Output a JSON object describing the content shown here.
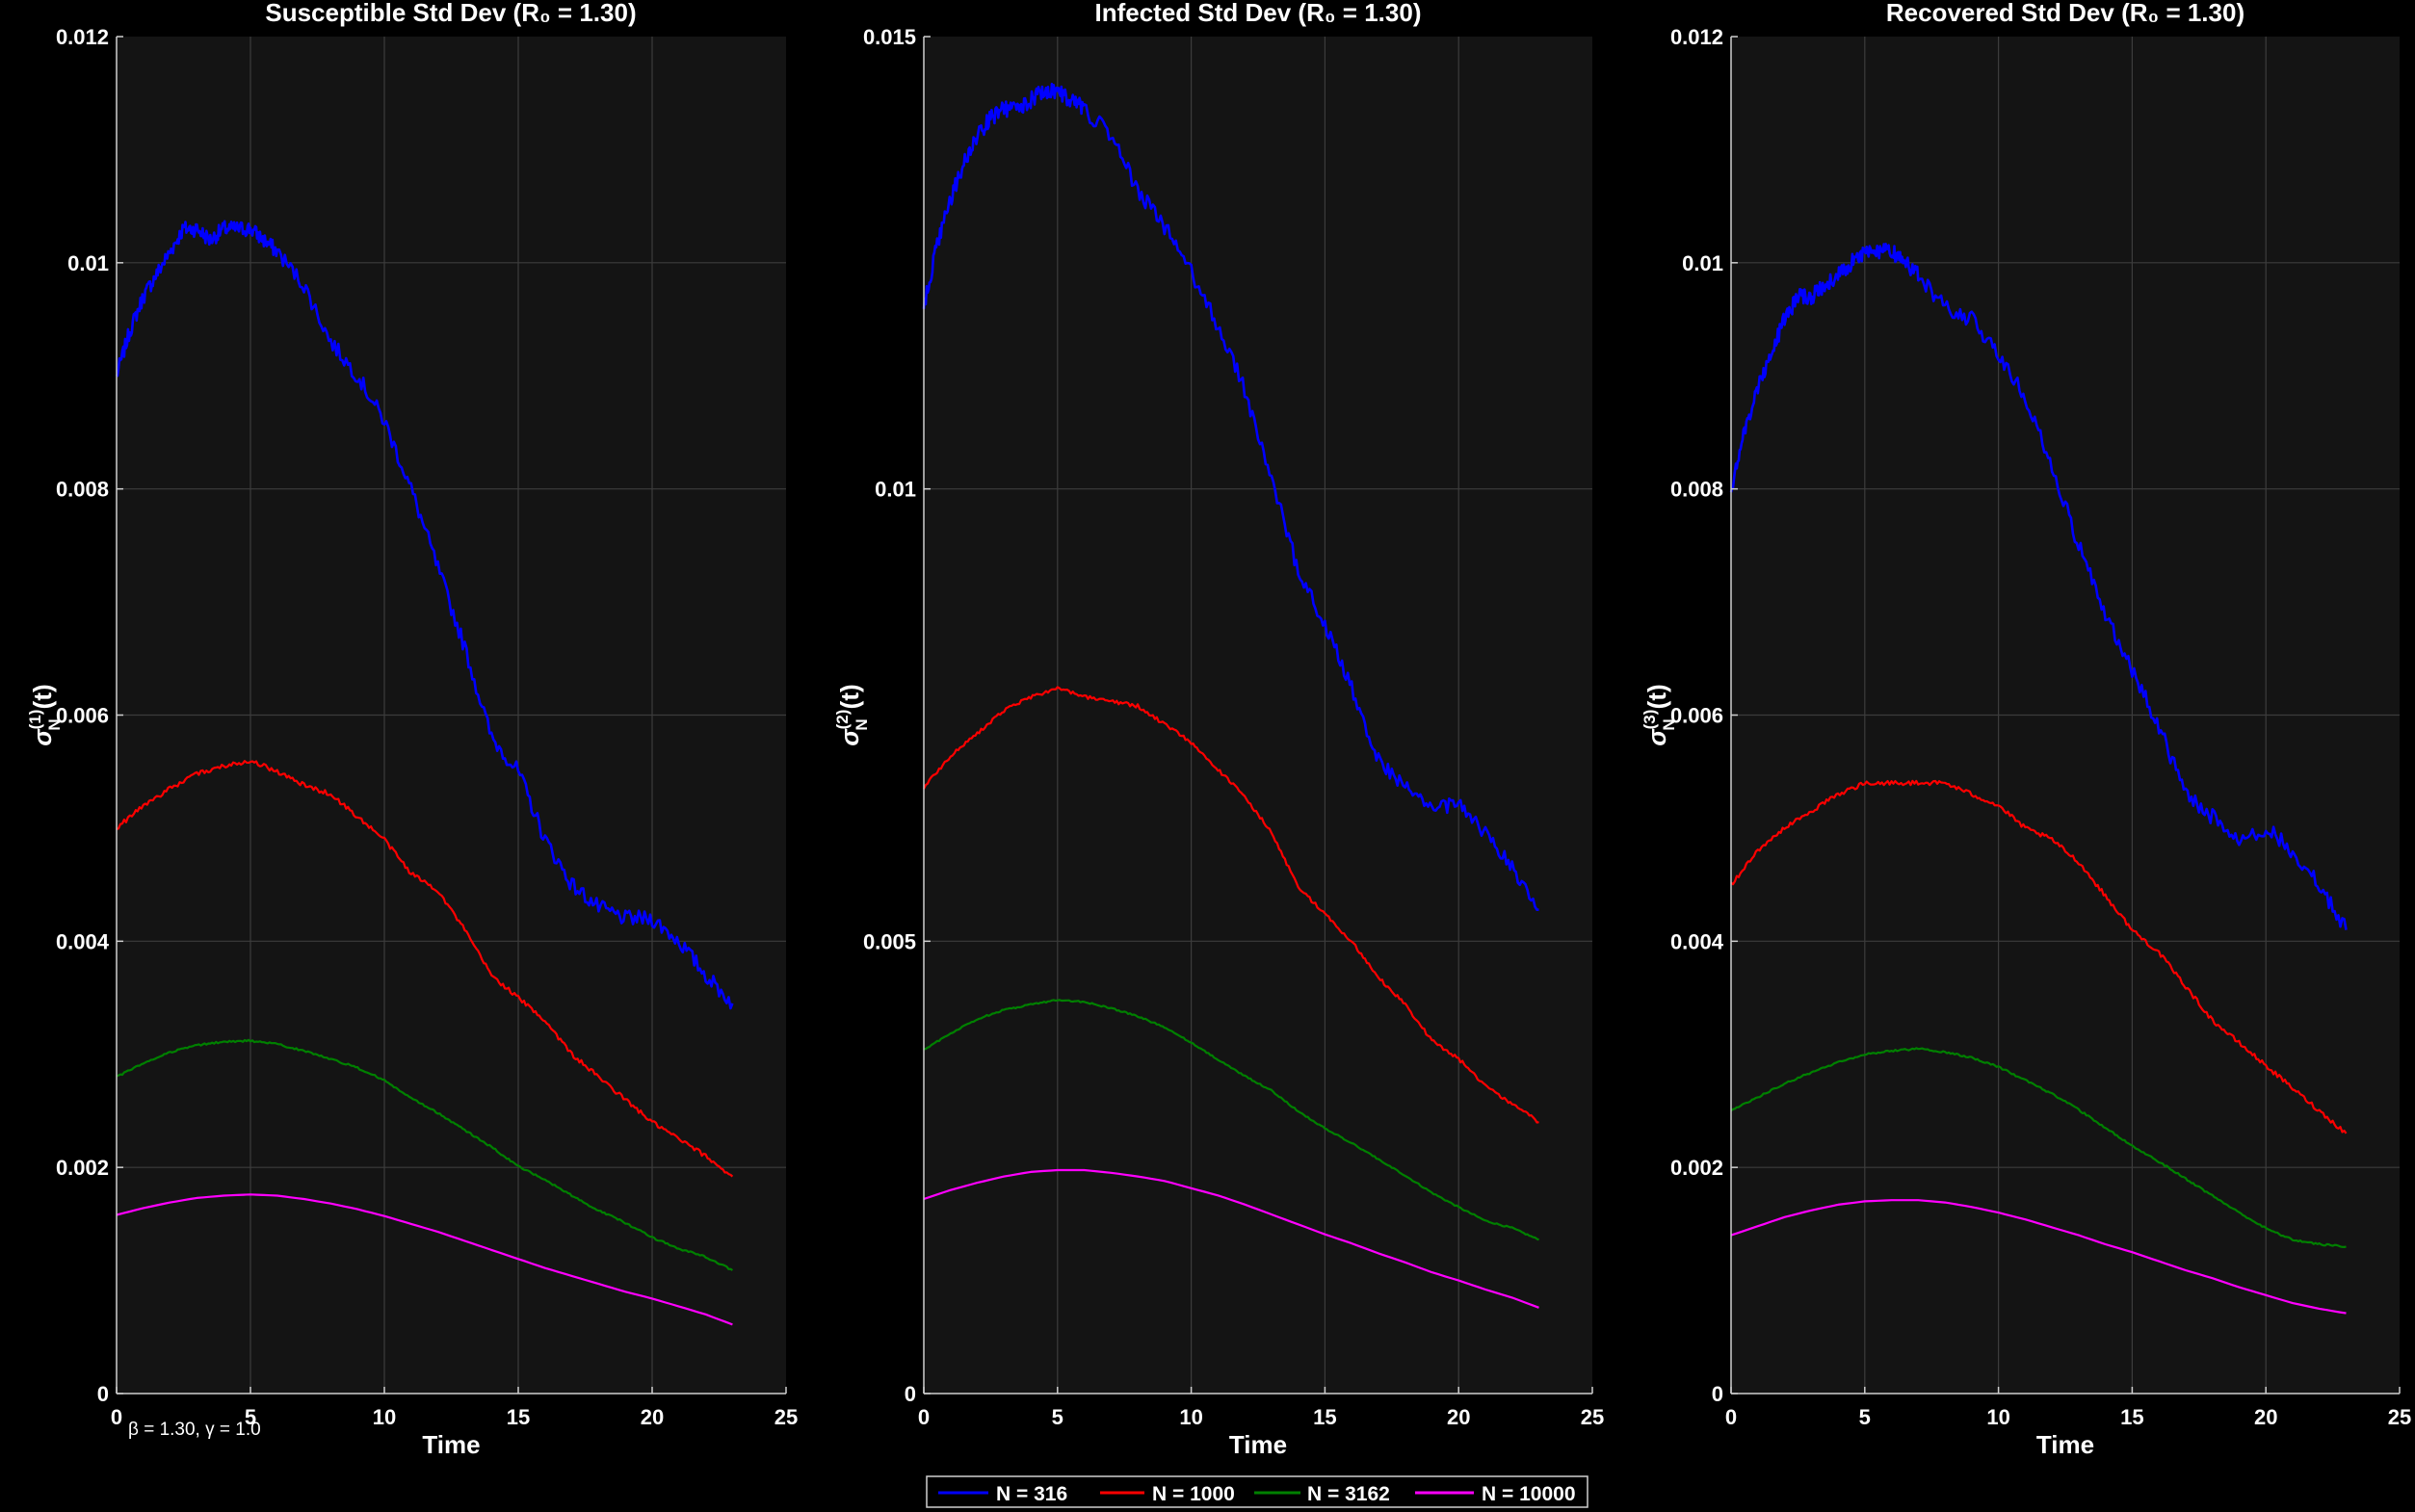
{
  "figure": {
    "background": "#000000",
    "panel_background": "#141414",
    "grid_color": "#3c3c3c",
    "axis_color": "#cfcfcf"
  },
  "legend": {
    "placement": "bottom-center",
    "entries": [
      {
        "label": "N = 316",
        "color": "#0000ff"
      },
      {
        "label": "N = 1000",
        "color": "#ff0000"
      },
      {
        "label": "N = 3162",
        "color": "#008000"
      },
      {
        "label": "N = 10000",
        "color": "#ff00ff"
      }
    ]
  },
  "annotation": "β = 1.30, γ = 1.0",
  "chart_data": [
    {
      "type": "line",
      "title": "Susceptible Std Dev (R₀ = 1.30)",
      "xlabel": "Time",
      "ylabel_main": "σ",
      "ylabel_sup": "(1)",
      "ylabel_sub": "N",
      "ylabel_tail": "(t)",
      "xlim": [
        0,
        25
      ],
      "ylim": [
        0,
        0.012
      ],
      "xticks": [
        0,
        5,
        10,
        15,
        20,
        25
      ],
      "yticks": [
        0,
        0.002,
        0.004,
        0.006,
        0.008,
        0.01,
        0.012
      ],
      "ytick_labels": [
        "0",
        "0.002",
        "0.004",
        "0.006",
        "0.008",
        "0.01",
        "0.012"
      ],
      "grid": true,
      "series": [
        {
          "name": "N = 316",
          "color": "#0000ff",
          "noise": 7e-05,
          "x": [
            0,
            0.5,
            1,
            1.5,
            2,
            2.5,
            3,
            3.5,
            4,
            4.5,
            5,
            5.5,
            6,
            7,
            8,
            9,
            10,
            11,
            12,
            13,
            14,
            15,
            16,
            17,
            18,
            19,
            20,
            21,
            22,
            23
          ],
          "values": [
            0.009,
            0.0094,
            0.0097,
            0.0099,
            0.0101,
            0.0103,
            0.0103,
            0.0102,
            0.0103,
            0.0103,
            0.0103,
            0.0102,
            0.0101,
            0.0098,
            0.0093,
            0.009,
            0.0086,
            0.008,
            0.0073,
            0.0066,
            0.0058,
            0.0055,
            0.0049,
            0.0045,
            0.0043,
            0.0042,
            0.0042,
            0.004,
            0.0037,
            0.00345
          ]
        },
        {
          "name": "N = 1000",
          "color": "#ff0000",
          "noise": 2e-05,
          "x": [
            0,
            1,
            2,
            3,
            4,
            5,
            6,
            7,
            8,
            9,
            10,
            11,
            12,
            13,
            14,
            15,
            16,
            17,
            18,
            19,
            20,
            21,
            22,
            23
          ],
          "values": [
            0.005,
            0.0052,
            0.00535,
            0.00548,
            0.00555,
            0.0056,
            0.0055,
            0.00538,
            0.0053,
            0.0051,
            0.0049,
            0.0046,
            0.00445,
            0.0041,
            0.0037,
            0.0035,
            0.0033,
            0.003,
            0.0028,
            0.0026,
            0.0024,
            0.00225,
            0.0021,
            0.00192
          ]
        },
        {
          "name": "N = 3162",
          "color": "#008000",
          "noise": 8e-06,
          "x": [
            0,
            1,
            2,
            3,
            4,
            5,
            6,
            7,
            8,
            9,
            10,
            11,
            12,
            13,
            14,
            15,
            16,
            17,
            18,
            19,
            20,
            21,
            22,
            23
          ],
          "values": [
            0.0028,
            0.00292,
            0.00302,
            0.00308,
            0.00311,
            0.00312,
            0.00309,
            0.00303,
            0.00296,
            0.00288,
            0.00277,
            0.00261,
            0.00248,
            0.00233,
            0.00218,
            0.00201,
            0.00189,
            0.00175,
            0.00162,
            0.00151,
            0.00138,
            0.00128,
            0.00121,
            0.00109
          ]
        },
        {
          "name": "N = 10000",
          "color": "#ff00ff",
          "noise": 0,
          "x": [
            0,
            1,
            2,
            3,
            4,
            5,
            6,
            7,
            8,
            9,
            10,
            11,
            12,
            13,
            14,
            15,
            16,
            17,
            18,
            19,
            20,
            21,
            22,
            23
          ],
          "values": [
            0.00158,
            0.00164,
            0.00169,
            0.00173,
            0.00175,
            0.00176,
            0.00175,
            0.00172,
            0.00168,
            0.00163,
            0.00157,
            0.0015,
            0.00143,
            0.00135,
            0.00127,
            0.00119,
            0.00111,
            0.00104,
            0.00097,
            0.0009,
            0.00084,
            0.00077,
            0.0007,
            0.00061
          ]
        }
      ]
    },
    {
      "type": "line",
      "title": "Infected Std Dev (R₀ = 1.30)",
      "xlabel": "Time",
      "ylabel_main": "σ",
      "ylabel_sup": "(2)",
      "ylabel_sub": "N",
      "ylabel_tail": "(t)",
      "xlim": [
        0,
        25
      ],
      "ylim": [
        0,
        0.015
      ],
      "xticks": [
        0,
        5,
        10,
        15,
        20,
        25
      ],
      "yticks": [
        0,
        0.005,
        0.01,
        0.015
      ],
      "ytick_labels": [
        "0",
        "0.005",
        "0.01",
        "0.015"
      ],
      "grid": true,
      "series": [
        {
          "name": "N = 316",
          "color": "#0000ff",
          "noise": 9e-05,
          "x": [
            0,
            0.5,
            1,
            1.5,
            2,
            2.5,
            3,
            3.5,
            4,
            4.5,
            5,
            5.5,
            6,
            7,
            8,
            9,
            10,
            11,
            12,
            13,
            14,
            15,
            16,
            17,
            18,
            19,
            20,
            21,
            22,
            23
          ],
          "values": [
            0.012,
            0.0127,
            0.0132,
            0.0136,
            0.0139,
            0.0141,
            0.0142,
            0.0142,
            0.0143,
            0.0144,
            0.0144,
            0.0143,
            0.0142,
            0.0139,
            0.0133,
            0.0129,
            0.0124,
            0.0118,
            0.0111,
            0.0101,
            0.0091,
            0.0085,
            0.0078,
            0.007,
            0.0067,
            0.0065,
            0.0065,
            0.0062,
            0.0058,
            0.00535
          ]
        },
        {
          "name": "N = 1000",
          "color": "#ff0000",
          "noise": 2e-05,
          "x": [
            0,
            1,
            2,
            3,
            4,
            5,
            6,
            7,
            8,
            9,
            10,
            11,
            12,
            13,
            14,
            15,
            16,
            17,
            18,
            19,
            20,
            21,
            22,
            23
          ],
          "values": [
            0.0067,
            0.00705,
            0.0073,
            0.00755,
            0.0077,
            0.0078,
            0.0077,
            0.00765,
            0.0076,
            0.0074,
            0.0072,
            0.0069,
            0.0066,
            0.0062,
            0.0056,
            0.0053,
            0.005,
            0.0046,
            0.0043,
            0.0039,
            0.0037,
            0.0034,
            0.0032,
            0.003
          ]
        },
        {
          "name": "N = 3162",
          "color": "#008000",
          "noise": 8e-06,
          "x": [
            0,
            1,
            2,
            3,
            4,
            5,
            6,
            7,
            8,
            9,
            10,
            11,
            12,
            13,
            14,
            15,
            16,
            17,
            18,
            19,
            20,
            21,
            22,
            23
          ],
          "values": [
            0.0038,
            0.00398,
            0.00414,
            0.00424,
            0.0043,
            0.00435,
            0.00433,
            0.00426,
            0.00417,
            0.00405,
            0.00388,
            0.00369,
            0.00351,
            0.00335,
            0.00312,
            0.00293,
            0.00277,
            0.00259,
            0.00241,
            0.00222,
            0.00206,
            0.00191,
            0.00183,
            0.0017
          ]
        },
        {
          "name": "N = 10000",
          "color": "#ff00ff",
          "noise": 0,
          "x": [
            0,
            1,
            2,
            3,
            4,
            5,
            6,
            7,
            8,
            9,
            10,
            11,
            12,
            13,
            14,
            15,
            16,
            17,
            18,
            19,
            20,
            21,
            22,
            23
          ],
          "values": [
            0.00215,
            0.00225,
            0.00233,
            0.0024,
            0.00245,
            0.00247,
            0.00247,
            0.00244,
            0.0024,
            0.00235,
            0.00227,
            0.00219,
            0.00209,
            0.00198,
            0.00187,
            0.00176,
            0.00166,
            0.00155,
            0.00145,
            0.00134,
            0.00125,
            0.00115,
            0.00106,
            0.00095
          ]
        }
      ]
    },
    {
      "type": "line",
      "title": "Recovered Std Dev (R₀ = 1.30)",
      "xlabel": "Time",
      "ylabel_main": "σ",
      "ylabel_sup": "(3)",
      "ylabel_sub": "N",
      "ylabel_tail": "(t)",
      "xlim": [
        0,
        25
      ],
      "ylim": [
        0,
        0.012
      ],
      "xticks": [
        0,
        5,
        10,
        15,
        20,
        25
      ],
      "yticks": [
        0,
        0.002,
        0.004,
        0.006,
        0.008,
        0.01,
        0.012
      ],
      "ytick_labels": [
        "0",
        "0.002",
        "0.004",
        "0.006",
        "0.008",
        "0.01",
        "0.012"
      ],
      "grid": true,
      "series": [
        {
          "name": "N = 316",
          "color": "#0000ff",
          "noise": 7e-05,
          "x": [
            0,
            0.5,
            1,
            1.5,
            2,
            2.5,
            3,
            3.5,
            4,
            4.5,
            5,
            5.5,
            6,
            6.5,
            7,
            8,
            9,
            10,
            11,
            12,
            13,
            14,
            15,
            16,
            17,
            18,
            19,
            20,
            21,
            22,
            23
          ],
          "values": [
            0.008,
            0.0085,
            0.0089,
            0.0092,
            0.0095,
            0.0097,
            0.0097,
            0.0098,
            0.0099,
            0.01,
            0.0101,
            0.0101,
            0.0101,
            0.01,
            0.0099,
            0.0096,
            0.0095,
            0.0092,
            0.0088,
            0.0082,
            0.0075,
            0.0069,
            0.0064,
            0.0059,
            0.0053,
            0.0051,
            0.0049,
            0.005,
            0.0048,
            0.0045,
            0.0041
          ]
        },
        {
          "name": "N = 1000",
          "color": "#ff0000",
          "noise": 2e-05,
          "x": [
            0,
            1,
            2,
            3,
            4,
            5,
            6,
            7,
            8,
            9,
            10,
            11,
            12,
            13,
            14,
            15,
            16,
            17,
            18,
            19,
            20,
            21,
            22,
            23
          ],
          "values": [
            0.0045,
            0.0048,
            0.005,
            0.00515,
            0.0053,
            0.0054,
            0.0054,
            0.0054,
            0.0054,
            0.0053,
            0.0052,
            0.005,
            0.0049,
            0.0047,
            0.0044,
            0.0041,
            0.0039,
            0.0036,
            0.0033,
            0.0031,
            0.0029,
            0.0027,
            0.0025,
            0.0023
          ]
        },
        {
          "name": "N = 3162",
          "color": "#008000",
          "noise": 8e-06,
          "x": [
            0,
            1,
            2,
            3,
            4,
            5,
            6,
            7,
            8,
            9,
            10,
            11,
            12,
            13,
            14,
            15,
            16,
            17,
            18,
            19,
            20,
            21,
            22,
            23
          ],
          "values": [
            0.0025,
            0.00262,
            0.00274,
            0.00284,
            0.00293,
            0.003,
            0.00303,
            0.00305,
            0.00302,
            0.00297,
            0.00289,
            0.00277,
            0.00265,
            0.00251,
            0.00235,
            0.00219,
            0.00205,
            0.0019,
            0.00175,
            0.0016,
            0.00146,
            0.00136,
            0.00132,
            0.0013
          ]
        },
        {
          "name": "N = 10000",
          "color": "#ff00ff",
          "noise": 0,
          "x": [
            0,
            1,
            2,
            3,
            4,
            5,
            6,
            7,
            8,
            9,
            10,
            11,
            12,
            13,
            14,
            15,
            16,
            17,
            18,
            19,
            20,
            21,
            22,
            23
          ],
          "values": [
            0.0014,
            0.00148,
            0.00156,
            0.00162,
            0.00167,
            0.0017,
            0.00171,
            0.00171,
            0.00169,
            0.00165,
            0.0016,
            0.00154,
            0.00147,
            0.0014,
            0.00132,
            0.00125,
            0.00117,
            0.00109,
            0.00102,
            0.00094,
            0.00087,
            0.0008,
            0.00075,
            0.00071
          ]
        }
      ]
    }
  ]
}
